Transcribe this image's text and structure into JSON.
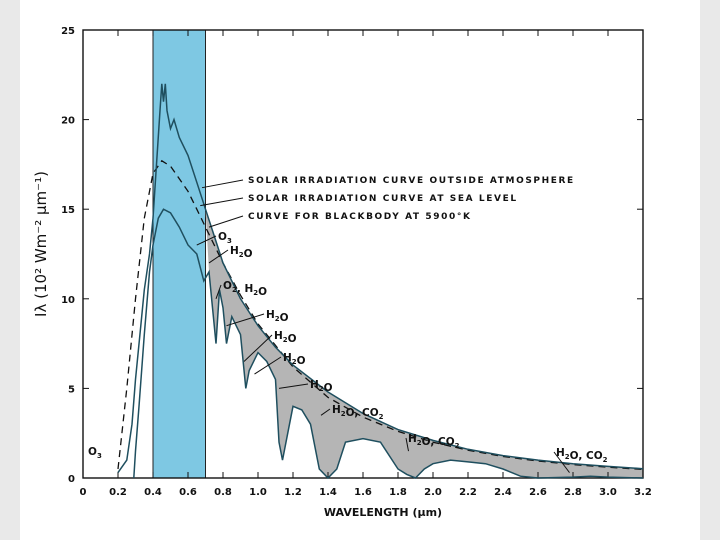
{
  "chart_data": {
    "type": "line",
    "title": "",
    "xlabel": "WAVELENGTH (μm)",
    "ylabel": "Iλ (10² Wm⁻² μm⁻¹)",
    "xlim": [
      0,
      3.2
    ],
    "ylim": [
      0,
      25
    ],
    "x_ticks": [
      "0",
      "0.2",
      "0.4",
      "0.6",
      "0.8",
      "1.0",
      "1.2",
      "1.4",
      "1.6",
      "1.8",
      "2.0",
      "2.2",
      "2.4",
      "2.6",
      "2.8",
      "3.0",
      "3.2"
    ],
    "y_ticks": [
      "0",
      "5",
      "10",
      "15",
      "20",
      "25"
    ],
    "highlight_band": {
      "x": [
        0.4,
        0.7
      ],
      "color": "#7ec8e3"
    },
    "series": [
      {
        "name": "CURVE FOR BLACKBODY AT 5900°K",
        "style": "dashed",
        "points": [
          [
            0.2,
            0.5
          ],
          [
            0.25,
            5.0
          ],
          [
            0.3,
            10.0
          ],
          [
            0.35,
            14.5
          ],
          [
            0.4,
            17.0
          ],
          [
            0.45,
            17.7
          ],
          [
            0.5,
            17.4
          ],
          [
            0.55,
            16.7
          ],
          [
            0.6,
            16.0
          ],
          [
            0.65,
            15.0
          ],
          [
            0.7,
            14.0
          ],
          [
            0.8,
            12.0
          ],
          [
            0.9,
            10.2
          ],
          [
            1.0,
            8.6
          ],
          [
            1.2,
            6.2
          ],
          [
            1.4,
            4.5
          ],
          [
            1.6,
            3.4
          ],
          [
            1.8,
            2.6
          ],
          [
            2.0,
            2.0
          ],
          [
            2.2,
            1.55
          ],
          [
            2.4,
            1.2
          ],
          [
            2.6,
            0.95
          ],
          [
            2.8,
            0.75
          ],
          [
            3.0,
            0.6
          ],
          [
            3.2,
            0.48
          ]
        ]
      },
      {
        "name": "SOLAR IRRADIATION CURVE OUTSIDE ATMOSPHERE",
        "style": "solid",
        "points": [
          [
            0.2,
            0.3
          ],
          [
            0.25,
            1.0
          ],
          [
            0.28,
            3.0
          ],
          [
            0.3,
            5.5
          ],
          [
            0.33,
            8.5
          ],
          [
            0.35,
            10.5
          ],
          [
            0.38,
            12.5
          ],
          [
            0.4,
            14.5
          ],
          [
            0.42,
            17.5
          ],
          [
            0.44,
            20.5
          ],
          [
            0.45,
            22.0
          ],
          [
            0.46,
            21.0
          ],
          [
            0.47,
            22.0
          ],
          [
            0.48,
            20.5
          ],
          [
            0.5,
            19.5
          ],
          [
            0.52,
            20.0
          ],
          [
            0.55,
            19.0
          ],
          [
            0.6,
            18.0
          ],
          [
            0.65,
            16.5
          ],
          [
            0.7,
            15.0
          ],
          [
            0.75,
            13.5
          ],
          [
            0.8,
            12.0
          ],
          [
            0.9,
            10.0
          ],
          [
            1.0,
            8.5
          ],
          [
            1.1,
            7.3
          ],
          [
            1.2,
            6.3
          ],
          [
            1.4,
            4.8
          ],
          [
            1.6,
            3.6
          ],
          [
            1.8,
            2.7
          ],
          [
            2.0,
            2.1
          ],
          [
            2.2,
            1.6
          ],
          [
            2.4,
            1.25
          ],
          [
            2.6,
            1.0
          ],
          [
            2.8,
            0.8
          ],
          [
            3.0,
            0.65
          ],
          [
            3.2,
            0.52
          ]
        ]
      },
      {
        "name": "SOLAR IRRADIATION CURVE AT SEA LEVEL",
        "style": "solid",
        "points": [
          [
            0.29,
            0.0
          ],
          [
            0.3,
            1.5
          ],
          [
            0.32,
            4.0
          ],
          [
            0.35,
            8.0
          ],
          [
            0.38,
            11.5
          ],
          [
            0.4,
            13.0
          ],
          [
            0.43,
            14.5
          ],
          [
            0.46,
            15.0
          ],
          [
            0.5,
            14.8
          ],
          [
            0.55,
            14.0
          ],
          [
            0.6,
            13.0
          ],
          [
            0.65,
            12.5
          ],
          [
            0.69,
            11.0
          ],
          [
            0.72,
            11.5
          ],
          [
            0.76,
            7.5
          ],
          [
            0.78,
            10.5
          ],
          [
            0.8,
            9.5
          ],
          [
            0.82,
            7.5
          ],
          [
            0.85,
            9.0
          ],
          [
            0.9,
            8.0
          ],
          [
            0.93,
            5.0
          ],
          [
            0.95,
            6.0
          ],
          [
            1.0,
            7.0
          ],
          [
            1.05,
            6.5
          ],
          [
            1.1,
            5.5
          ],
          [
            1.12,
            2.0
          ],
          [
            1.14,
            1.0
          ],
          [
            1.18,
            3.0
          ],
          [
            1.2,
            4.0
          ],
          [
            1.25,
            3.8
          ],
          [
            1.3,
            3.0
          ],
          [
            1.35,
            0.5
          ],
          [
            1.4,
            0.0
          ],
          [
            1.45,
            0.5
          ],
          [
            1.5,
            2.0
          ],
          [
            1.6,
            2.2
          ],
          [
            1.7,
            2.0
          ],
          [
            1.8,
            0.5
          ],
          [
            1.85,
            0.2
          ],
          [
            1.9,
            0.0
          ],
          [
            1.95,
            0.5
          ],
          [
            2.0,
            0.8
          ],
          [
            2.1,
            1.0
          ],
          [
            2.2,
            0.9
          ],
          [
            2.3,
            0.8
          ],
          [
            2.4,
            0.5
          ],
          [
            2.5,
            0.1
          ],
          [
            2.6,
            0.0
          ],
          [
            2.8,
            0.05
          ],
          [
            2.9,
            0.1
          ],
          [
            3.0,
            0.05
          ],
          [
            3.2,
            0.0
          ]
        ]
      }
    ],
    "legend_annotations": [
      "SOLAR IRRADIATION CURVE OUTSIDE ATMOSPHERE",
      "SOLAR IRRADIATION CURVE AT SEA LEVEL",
      "CURVE FOR BLACKBODY AT 5900°K"
    ],
    "absorption_labels": [
      {
        "parts": [
          [
            "O",
            "3"
          ]
        ]
      },
      {
        "parts": [
          [
            "H",
            "2"
          ],
          [
            "O",
            ""
          ]
        ]
      },
      {
        "parts": [
          [
            "O",
            "2"
          ],
          [
            ", H",
            "2"
          ],
          [
            "O",
            ""
          ]
        ]
      },
      {
        "parts": [
          [
            "H",
            "2"
          ],
          [
            "O",
            ""
          ]
        ]
      },
      {
        "parts": [
          [
            "H",
            "2"
          ],
          [
            "O",
            ""
          ]
        ]
      },
      {
        "parts": [
          [
            "H",
            "2"
          ],
          [
            "O",
            ""
          ]
        ]
      },
      {
        "parts": [
          [
            "H",
            "2"
          ],
          [
            "O",
            ""
          ]
        ]
      },
      {
        "parts": [
          [
            "H",
            "2"
          ],
          [
            "O, CO",
            "2"
          ]
        ]
      },
      {
        "parts": [
          [
            "H",
            "2"
          ],
          [
            "O, CO",
            "2"
          ]
        ]
      },
      {
        "parts": [
          [
            "H",
            "2"
          ],
          [
            "O, CO",
            "2"
          ]
        ]
      },
      {
        "parts": [
          [
            "O",
            "3"
          ]
        ]
      }
    ],
    "grid": false,
    "legend": "annotations"
  }
}
